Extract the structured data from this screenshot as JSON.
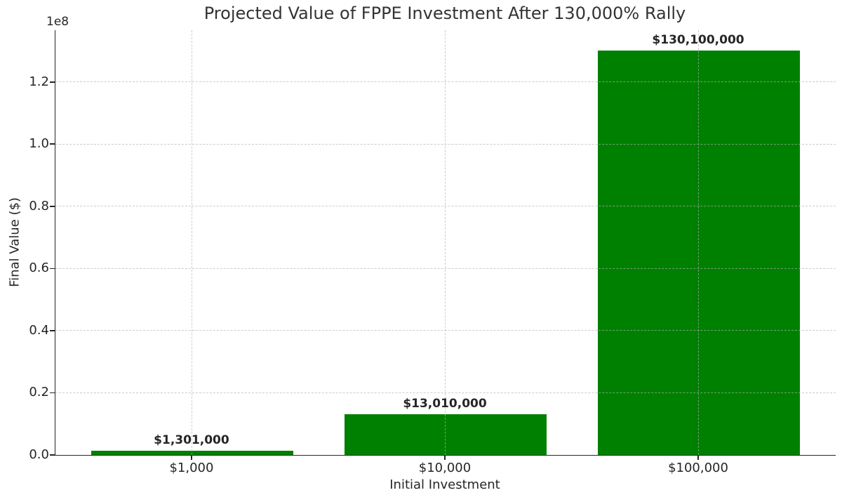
{
  "chart_data": {
    "type": "bar",
    "title": "Projected Value of FPPE Investment After 130,000% Rally",
    "xlabel": "Initial Investment",
    "ylabel": "Final Value ($)",
    "offset_text": "1e8",
    "categories": [
      "$1,000",
      "$10,000",
      "$100,000"
    ],
    "values": [
      1301000,
      13010000,
      130100000
    ],
    "bar_labels": [
      "$1,301,000",
      "$13,010,000",
      "$130,100,000"
    ],
    "bar_color": "#008000",
    "ylim": [
      0,
      136650000
    ],
    "yticks": [
      0,
      20000000,
      40000000,
      60000000,
      80000000,
      100000000,
      120000000
    ],
    "ytick_labels": [
      "0.0",
      "0.2",
      "0.4",
      "0.6",
      "0.8",
      "1.0",
      "1.2"
    ],
    "grid": {
      "visible": true,
      "style": "dashed",
      "color": "#b0b0b0"
    },
    "legend": null,
    "spine_color": "#262626",
    "text_color": "#262626"
  }
}
